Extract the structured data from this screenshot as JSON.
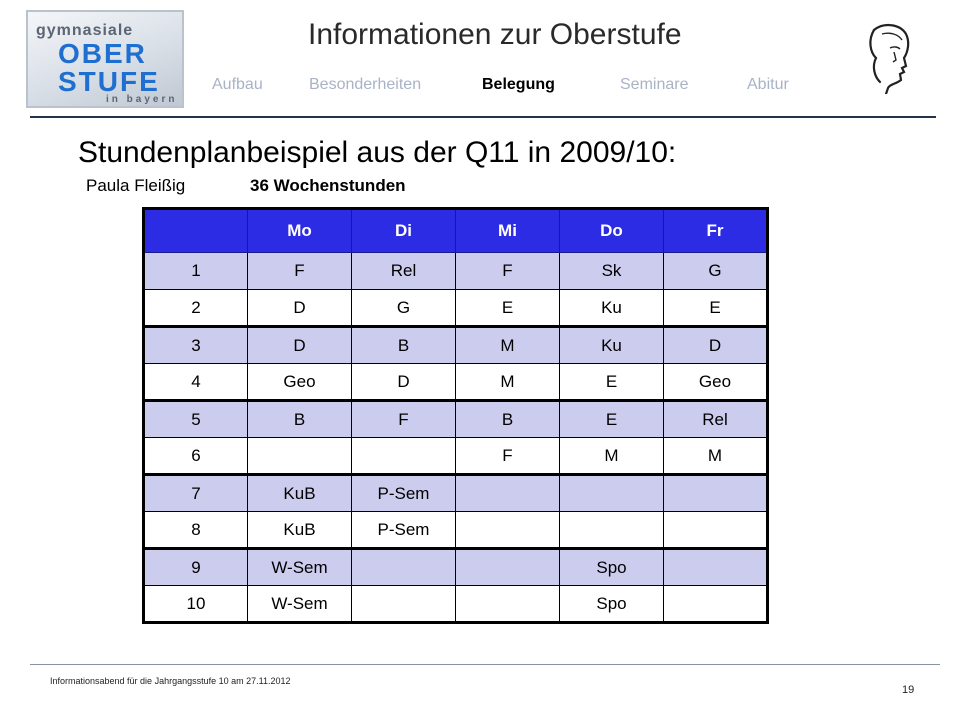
{
  "logo": {
    "line1": "gymnasiale",
    "line2": "OBER",
    "line3": "STUFE",
    "line4": "in bayern"
  },
  "header": {
    "title": "Informationen zur Oberstufe",
    "nav": [
      {
        "label": "Aufbau",
        "active": false
      },
      {
        "label": "Besonderheiten",
        "active": false
      },
      {
        "label": "Belegung",
        "active": true
      },
      {
        "label": "Seminare",
        "active": false
      },
      {
        "label": "Abitur",
        "active": false
      }
    ],
    "portrait_icon": "dante-portrait-icon"
  },
  "main": {
    "heading": "Stundenplanbeispiel aus der Q11 in 2009/10:",
    "student": "Paula Fleißig",
    "hours": "36 Wochenstunden",
    "table": {
      "headers": [
        "",
        "Mo",
        "Di",
        "Mi",
        "Do",
        "Fr"
      ],
      "rows": [
        [
          "1",
          "F",
          "Rel",
          "F",
          "Sk",
          "G"
        ],
        [
          "2",
          "D",
          "G",
          "E",
          "Ku",
          "E"
        ],
        [
          "3",
          "D",
          "B",
          "M",
          "Ku",
          "D"
        ],
        [
          "4",
          "Geo",
          "D",
          "M",
          "E",
          "Geo"
        ],
        [
          "5",
          "B",
          "F",
          "B",
          "E",
          "Rel"
        ],
        [
          "6",
          "",
          "",
          "F",
          "M",
          "M"
        ],
        [
          "7",
          "KuB",
          "P-Sem",
          "",
          "",
          ""
        ],
        [
          "8",
          "KuB",
          "P-Sem",
          "",
          "",
          ""
        ],
        [
          "9",
          "W-Sem",
          "",
          "",
          "Spo",
          ""
        ],
        [
          "10",
          "W-Sem",
          "",
          "",
          "Spo",
          ""
        ]
      ]
    }
  },
  "footer": {
    "text": "Informationsabend für die Jahrgangsstufe 10 am 27.11.2012",
    "page": "19"
  },
  "colors": {
    "header_row": "#2c2ce4",
    "shaded_row": "#ccccee",
    "nav_inactive": "#a9b3c6",
    "logo_blue": "#1f6fd1"
  }
}
